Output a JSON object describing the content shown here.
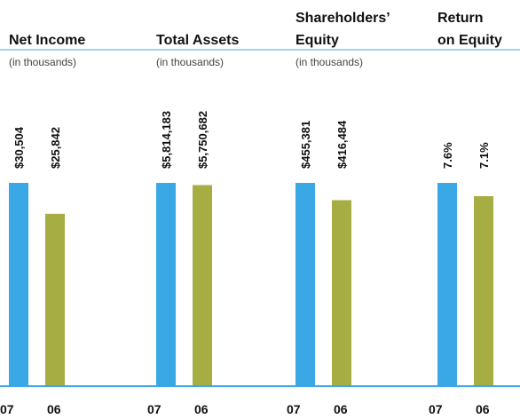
{
  "chart_data": [
    {
      "type": "bar",
      "title": [
        "Net Income"
      ],
      "subtitle": "(in thousands)",
      "categories": [
        "07",
        "06"
      ],
      "values": [
        30504,
        25842
      ],
      "value_labels": [
        "$30,504",
        "$25,842"
      ],
      "colors": [
        "#3aa8e4",
        "#a5ad43"
      ]
    },
    {
      "type": "bar",
      "title": [
        "Total Assets"
      ],
      "subtitle": "(in thousands)",
      "categories": [
        "07",
        "06"
      ],
      "values": [
        5814183,
        5750682
      ],
      "value_labels": [
        "$5,814,183",
        "$5,750,682"
      ],
      "colors": [
        "#3aa8e4",
        "#a5ad43"
      ]
    },
    {
      "type": "bar",
      "title": [
        "Shareholders’",
        "Equity"
      ],
      "subtitle": "(in thousands)",
      "categories": [
        "07",
        "06"
      ],
      "values": [
        455381,
        416484
      ],
      "value_labels": [
        "$455,381",
        "$416,484"
      ],
      "colors": [
        "#3aa8e4",
        "#a5ad43"
      ]
    },
    {
      "type": "bar",
      "title": [
        "Return",
        "on Equity"
      ],
      "categories": [
        "07",
        "06"
      ],
      "values": [
        7.6,
        7.1
      ],
      "value_labels": [
        "7.6%",
        "7.1%"
      ],
      "colors": [
        "#3aa8e4",
        "#a5ad43"
      ]
    }
  ]
}
